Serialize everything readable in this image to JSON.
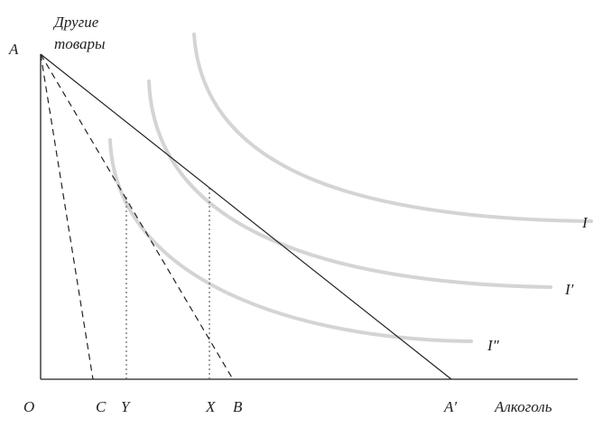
{
  "axes": {
    "y_label_line1": "Другие",
    "y_label_line2": "товары",
    "x_label": "Алкоголь",
    "origin": "O"
  },
  "points": {
    "A": "A",
    "A_prime": "A′",
    "B": "B",
    "C": "C",
    "X": "X",
    "Y": "Y"
  },
  "curves": {
    "I": "I",
    "I_prime": "I′",
    "I_double_prime": "I″"
  }
}
